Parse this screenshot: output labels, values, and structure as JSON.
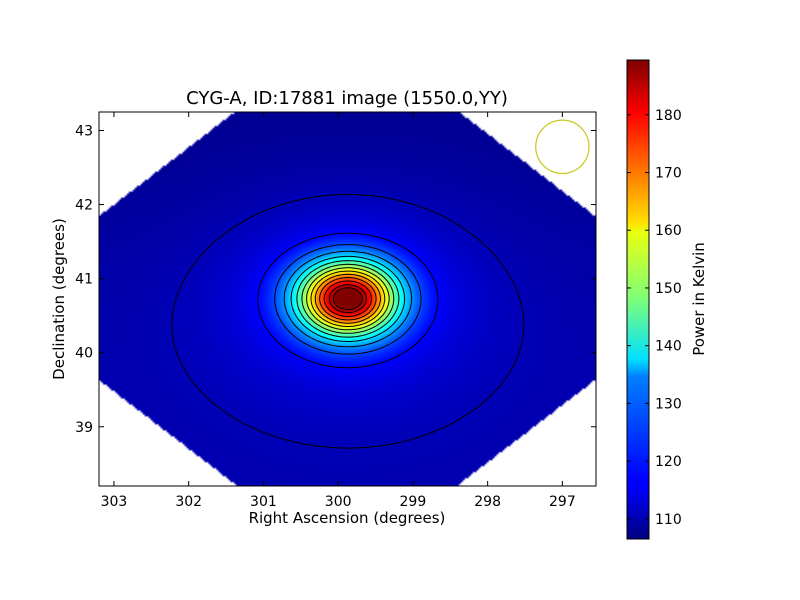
{
  "chart_data": {
    "type": "heatmap",
    "title": "CYG-A, ID:17881 image (1550.0,YY)",
    "xlabel": "Right Ascension (degrees)",
    "ylabel": "Declination (degrees)",
    "xlim": [
      303.2,
      296.55
    ],
    "ylim": [
      38.2,
      43.25
    ],
    "x_ticks": [
      303,
      302,
      301,
      300,
      299,
      298,
      297
    ],
    "y_ticks": [
      39,
      40,
      41,
      42,
      43
    ],
    "x_tick_labels": [
      "303",
      "302",
      "301",
      "300",
      "299",
      "298",
      "297"
    ],
    "y_tick_labels": [
      "39",
      "40",
      "41",
      "42",
      "43"
    ],
    "colorbar": {
      "label": "Power in Kelvin",
      "min": 106.5,
      "max": 189.5,
      "ticks": [
        110,
        120,
        130,
        140,
        150,
        160,
        170,
        180
      ],
      "tick_labels": [
        "110",
        "120",
        "130",
        "140",
        "150",
        "160",
        "170",
        "180"
      ],
      "colormap": "jet"
    },
    "source_peak": {
      "ra": 299.87,
      "dec": 40.73,
      "value": 189
    },
    "background_level": 108,
    "beam_circle": {
      "ra": 297.0,
      "dec": 42.78,
      "radius_deg": 0.36,
      "color": "#c8c81e"
    },
    "contour_levels": [
      111,
      117,
      123,
      129,
      135,
      141,
      147,
      153,
      159,
      165,
      171,
      177,
      183,
      187
    ]
  },
  "colors": {
    "background": "#ffffff",
    "contour": "#000000",
    "beam": "#c8c81e"
  }
}
